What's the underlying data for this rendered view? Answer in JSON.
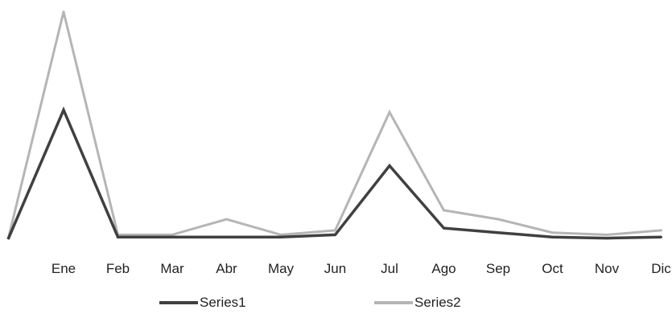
{
  "chart_data": {
    "type": "line",
    "title": "",
    "xlabel": "",
    "ylabel": "",
    "categories": [
      "Ene",
      "Feb",
      "Mar",
      "Abr",
      "May",
      "Jun",
      "Jul",
      "Ago",
      "Sep",
      "Oct",
      "Nov",
      "Dic"
    ],
    "start_value": 0,
    "series": [
      {
        "name": "Series1",
        "color": "#404040",
        "values": [
          58,
          1,
          1,
          1,
          1,
          2,
          33,
          5,
          3,
          1,
          0.5,
          1
        ]
      },
      {
        "name": "Series2",
        "color": "#b5b5b5",
        "values": [
          102,
          2,
          2,
          9,
          2,
          4,
          57,
          13,
          9,
          3,
          2,
          4
        ]
      }
    ],
    "ylim": [
      0,
      103
    ],
    "grid": false,
    "legend": "bottom"
  }
}
